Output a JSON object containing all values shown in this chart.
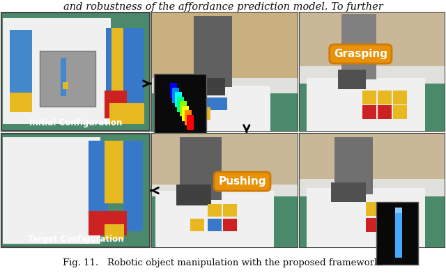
{
  "figure_width": 6.4,
  "figure_height": 3.92,
  "dpi": 100,
  "bg": "#ffffff",
  "caption": "Fig. 11.   Robotic object manipulation with the proposed framework.",
  "header": "and robustness of the affordance prediction model. To further",
  "label_grasping": "Grasping",
  "label_pushing": "Pushing",
  "label_initial": "Initial Configuration",
  "label_target": "Target Configuration",
  "orange_bg": "#e8920a",
  "orange_edge": "#d07808",
  "white": "#ffffff",
  "black": "#000000",
  "teal": "#4a8a6a",
  "teal_dark": "#2a6a4a",
  "gray_room": "#c8b898",
  "gray_robot": "#888888",
  "yellow_lego": "#e8b820",
  "blue_lego": "#3878c8",
  "red_lego": "#cc2222",
  "panel_border": "#444444"
}
